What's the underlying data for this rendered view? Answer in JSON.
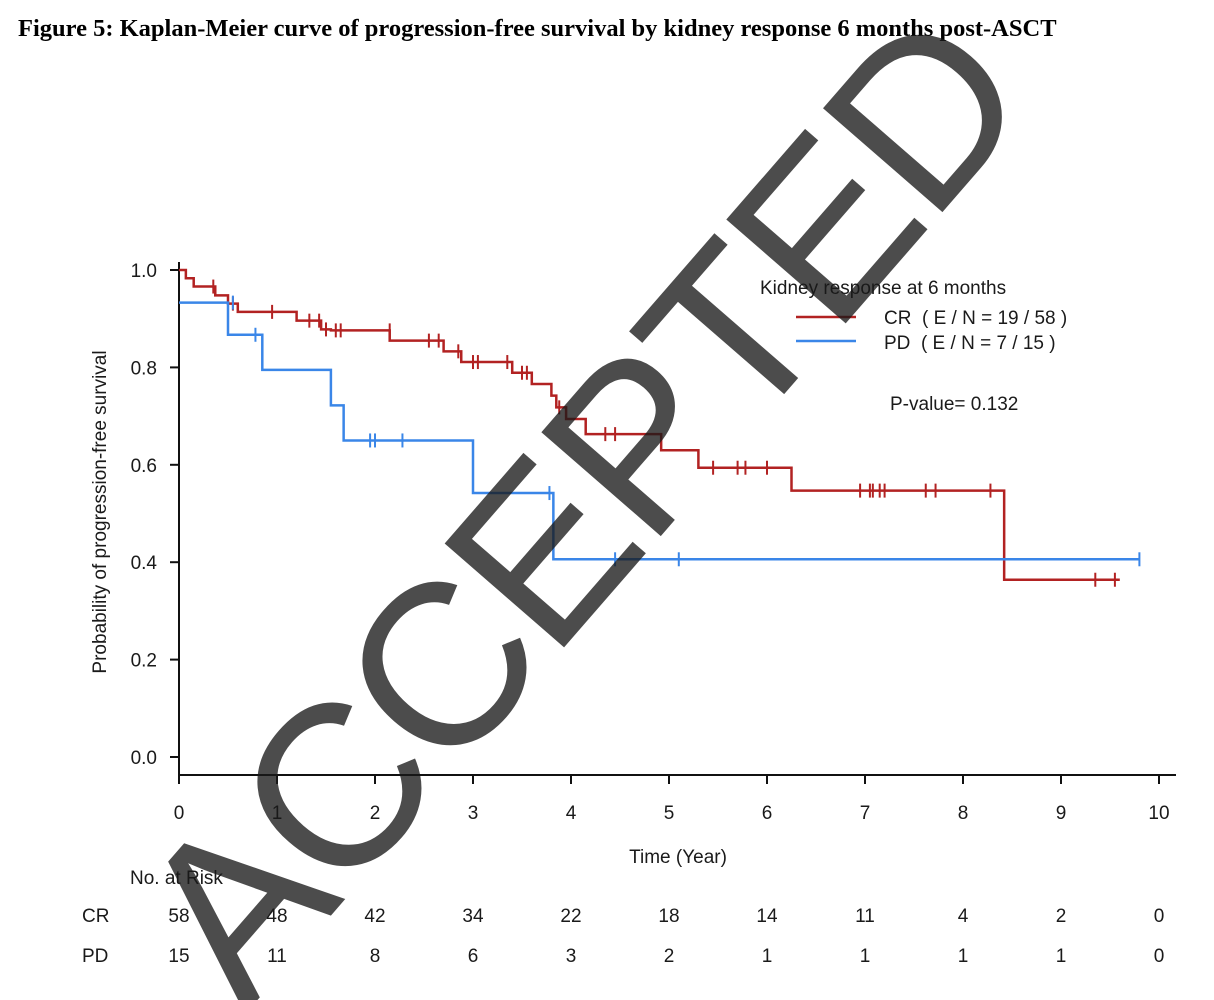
{
  "figure": {
    "title": "Figure 5: Kaplan-Meier curve of progression-free survival by kidney response 6 months post-ASCT"
  },
  "watermark": {
    "text": "ACCEPTED",
    "color": "#d4d4d4"
  },
  "chart_data": {
    "type": "line",
    "subtype": "kaplan-meier-step",
    "title": "",
    "xlabel": "Time (Year)",
    "ylabel": "Probability of progression-free survival",
    "xlim": [
      0,
      10
    ],
    "ylim": [
      0,
      1
    ],
    "x_ticks": [
      0,
      1,
      2,
      3,
      4,
      5,
      6,
      7,
      8,
      9,
      10
    ],
    "x_tick_labels": [
      "0",
      "1",
      "2",
      "3",
      "4",
      "5",
      "6",
      "7",
      "8",
      "9",
      "10"
    ],
    "y_ticks": [
      0,
      0.2,
      0.4,
      0.6,
      0.8,
      1.0
    ],
    "y_tick_labels": [
      "0.0",
      "0.2",
      "0.4",
      "0.6",
      "0.8",
      "1.0"
    ],
    "grid": false,
    "legend": {
      "title": "Kidney response at 6 months",
      "placement": "top-right",
      "entries": [
        "CR  ( E / N = 19 / 58 )",
        "PD  ( E / N = 7 / 15 )"
      ]
    },
    "annotation": "P-value= 0.132",
    "series": [
      {
        "name": "CR",
        "color": "#b22222",
        "steps": [
          [
            0,
            1.0
          ],
          [
            0.07,
            0.983
          ],
          [
            0.15,
            0.966
          ],
          [
            0.37,
            0.948
          ],
          [
            0.5,
            0.931
          ],
          [
            0.6,
            0.914
          ],
          [
            1.2,
            0.896
          ],
          [
            1.45,
            0.878
          ],
          [
            1.55,
            0.876
          ],
          [
            2.15,
            0.855
          ],
          [
            2.7,
            0.833
          ],
          [
            2.88,
            0.811
          ],
          [
            3.4,
            0.789
          ],
          [
            3.6,
            0.766
          ],
          [
            3.8,
            0.742
          ],
          [
            3.85,
            0.718
          ],
          [
            3.95,
            0.694
          ],
          [
            4.15,
            0.663
          ],
          [
            4.92,
            0.63
          ],
          [
            5.3,
            0.594
          ],
          [
            6.25,
            0.547
          ],
          [
            8.42,
            0.364
          ],
          [
            9.6,
            0.364
          ]
        ],
        "censored": [
          [
            0.35,
            0.966
          ],
          [
            0.55,
            0.931
          ],
          [
            0.95,
            0.914
          ],
          [
            1.33,
            0.896
          ],
          [
            1.43,
            0.896
          ],
          [
            1.5,
            0.878
          ],
          [
            1.6,
            0.876
          ],
          [
            1.65,
            0.876
          ],
          [
            2.15,
            0.876
          ],
          [
            2.55,
            0.855
          ],
          [
            2.65,
            0.855
          ],
          [
            2.85,
            0.833
          ],
          [
            3.0,
            0.811
          ],
          [
            3.05,
            0.811
          ],
          [
            3.35,
            0.811
          ],
          [
            3.5,
            0.789
          ],
          [
            3.55,
            0.789
          ],
          [
            3.88,
            0.718
          ],
          [
            4.35,
            0.663
          ],
          [
            4.45,
            0.663
          ],
          [
            5.45,
            0.594
          ],
          [
            5.7,
            0.594
          ],
          [
            5.78,
            0.594
          ],
          [
            6.0,
            0.594
          ],
          [
            6.95,
            0.547
          ],
          [
            7.05,
            0.547
          ],
          [
            7.08,
            0.547
          ],
          [
            7.15,
            0.547
          ],
          [
            7.2,
            0.547
          ],
          [
            7.62,
            0.547
          ],
          [
            7.72,
            0.547
          ],
          [
            8.28,
            0.547
          ],
          [
            9.35,
            0.364
          ],
          [
            9.55,
            0.364
          ]
        ]
      },
      {
        "name": "PD",
        "color": "#3a86e8",
        "steps": [
          [
            0,
            0.933
          ],
          [
            0.5,
            0.867
          ],
          [
            0.85,
            0.795
          ],
          [
            1.55,
            0.722
          ],
          [
            1.68,
            0.65
          ],
          [
            3.0,
            0.542
          ],
          [
            3.82,
            0.406
          ],
          [
            9.8,
            0.406
          ]
        ],
        "censored": [
          [
            0.55,
            0.933
          ],
          [
            0.78,
            0.867
          ],
          [
            1.95,
            0.65
          ],
          [
            2.0,
            0.65
          ],
          [
            2.28,
            0.65
          ],
          [
            3.78,
            0.542
          ],
          [
            4.45,
            0.406
          ],
          [
            5.1,
            0.406
          ],
          [
            9.8,
            0.406
          ]
        ]
      }
    ],
    "risk_table": {
      "header": "No. at Risk",
      "times": [
        0,
        1,
        2,
        3,
        4,
        5,
        6,
        7,
        8,
        9,
        10
      ],
      "rows": [
        {
          "label": "CR",
          "values": [
            "58",
            "48",
            "42",
            "34",
            "22",
            "18",
            "14",
            "11",
            "4",
            "2",
            "0"
          ]
        },
        {
          "label": "PD",
          "values": [
            "15",
            "11",
            "8",
            "6",
            "3",
            "2",
            "1",
            "1",
            "1",
            "1",
            "0"
          ]
        }
      ]
    }
  }
}
